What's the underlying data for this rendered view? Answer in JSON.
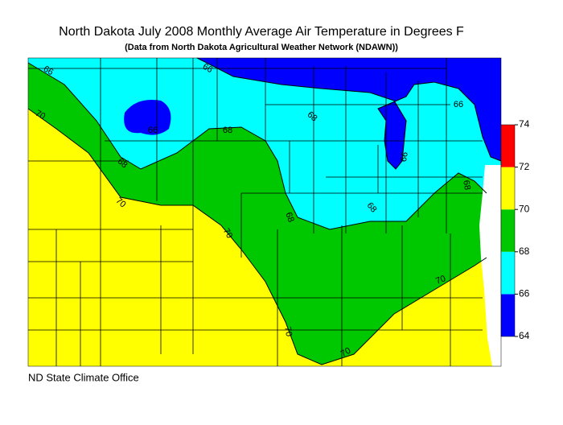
{
  "title": "North Dakota July 2008 Monthly Average Air Temperature in Degrees F",
  "subtitle": "(Data from North Dakota Agricultural Weather Network (NDAWN))",
  "legend": {
    "ticks": [
      64,
      66,
      68,
      70,
      72,
      74
    ],
    "colors": [
      "#0000ff",
      "#00ffff",
      "#00c800",
      "#ffff00",
      "#ff0000"
    ]
  },
  "contour_labels": [
    66,
    66,
    66,
    66,
    66,
    68,
    68,
    68,
    68,
    68,
    68,
    70,
    70,
    70,
    70,
    70,
    70
  ],
  "credit": "ND State Climate Office"
}
